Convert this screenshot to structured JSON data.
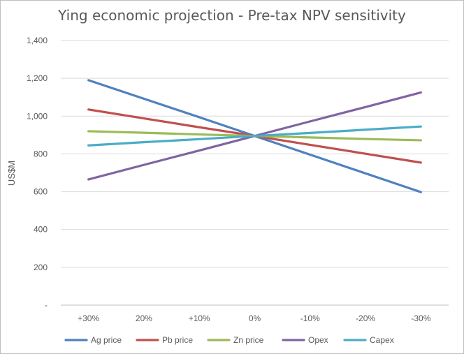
{
  "chart_data": {
    "type": "line",
    "title": "Ying economic projection - Pre-tax NPV sensitivity",
    "xlabel": "",
    "ylabel": "US$M",
    "categories": [
      "+30%",
      "20%",
      "+10%",
      "0%",
      "-10%",
      "-20%",
      "-30%"
    ],
    "ylim": [
      0,
      1400
    ],
    "yticks": [
      0,
      200,
      400,
      600,
      800,
      1000,
      1200,
      1400
    ],
    "ytick_labels": [
      "-",
      "200",
      "400",
      "600",
      "800",
      "1,000",
      "1,200",
      "1,400"
    ],
    "grid": true,
    "legend": "bottom",
    "series": [
      {
        "name": "Ag price",
        "color": "#4F81BD",
        "values": [
          1190,
          1092,
          994,
          895,
          796,
          697,
          598
        ]
      },
      {
        "name": "Pb price",
        "color": "#C0504D",
        "values": [
          1035,
          988,
          941,
          895,
          848,
          801,
          754
        ]
      },
      {
        "name": "Zn price",
        "color": "#9BBB59",
        "values": [
          920,
          912,
          903,
          895,
          887,
          879,
          872
        ]
      },
      {
        "name": "Opex",
        "color": "#8064A2",
        "values": [
          665,
          742,
          818,
          895,
          972,
          1048,
          1125
        ]
      },
      {
        "name": "Capex",
        "color": "#4BACC6",
        "values": [
          845,
          862,
          878,
          895,
          911,
          928,
          945
        ]
      }
    ]
  }
}
